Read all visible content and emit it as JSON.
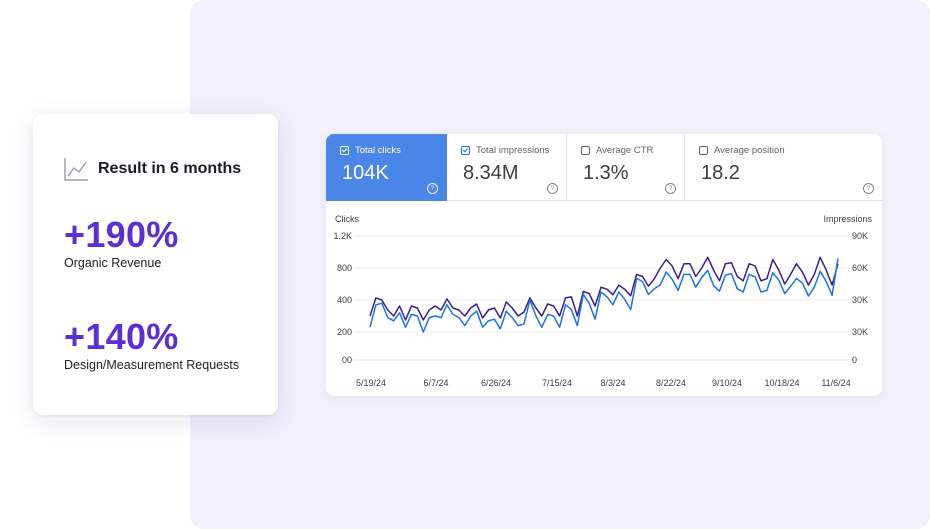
{
  "result_card": {
    "title": "Result in 6 months",
    "stats": [
      {
        "value": "+190%",
        "label": "Organic Revenue"
      },
      {
        "value": "+140%",
        "label": "Design/Measurement Requests"
      }
    ]
  },
  "metrics": [
    {
      "label": "Total clicks",
      "value": "104K",
      "checked": true,
      "active": true
    },
    {
      "label": "Total impressions",
      "value": "8.34M",
      "checked": true,
      "active": false
    },
    {
      "label": "Average CTR",
      "value": "1.3%",
      "checked": false,
      "active": false
    },
    {
      "label": "Average position",
      "value": "18.2",
      "checked": false,
      "active": false
    }
  ],
  "colors": {
    "accent": "#5b2fd6",
    "active_tab": "#4a85e8",
    "clicks_line": "#1a73e8",
    "impressions_line": "#3b1f87",
    "background_panel": "#f1f0fb"
  },
  "chart_data": {
    "type": "line",
    "xlabel_left": "Clicks",
    "ylabel_right": "Impressions",
    "x_ticks": [
      "5/19/24",
      "6/7/24",
      "6/26/24",
      "7/15/24",
      "8/3/24",
      "8/22/24",
      "9/10/24",
      "10/18/24",
      "11/6/24"
    ],
    "y_left_ticks": [
      "1.2K",
      "800",
      "400",
      "200",
      "00"
    ],
    "y_right_ticks": [
      "90K",
      "60K",
      "30K",
      "30K",
      "0"
    ],
    "grid": true,
    "series": [
      {
        "name": "Total clicks",
        "axis": "left",
        "values": [
          230,
          370,
          380,
          290,
          270,
          320,
          230,
          310,
          300,
          200,
          290,
          300,
          290,
          370,
          310,
          290,
          240,
          300,
          330,
          230,
          270,
          280,
          220,
          330,
          290,
          240,
          250,
          400,
          300,
          230,
          310,
          300,
          230,
          370,
          340,
          240,
          470,
          380,
          280,
          500,
          440,
          370,
          500,
          410,
          340,
          670,
          630,
          470,
          540,
          590,
          750,
          660,
          520,
          720,
          720,
          560,
          680,
          770,
          580,
          510,
          710,
          730,
          540,
          500,
          720,
          690,
          500,
          520,
          740,
          650,
          480,
          570,
          670,
          610,
          450,
          560,
          760,
          630,
          460,
          920
        ]
      },
      {
        "name": "Total impressions",
        "axis": "right",
        "values": [
          22,
          32,
          30,
          25,
          22,
          27,
          20,
          27,
          26,
          20,
          25,
          27,
          25,
          31,
          26,
          25,
          22,
          26,
          28,
          21,
          25,
          26,
          21,
          29,
          26,
          22,
          24,
          32,
          26,
          22,
          28,
          27,
          22,
          32,
          33,
          22,
          38,
          36,
          27,
          42,
          40,
          35,
          44,
          40,
          34,
          54,
          52,
          43,
          50,
          60,
          68,
          62,
          50,
          64,
          64,
          52,
          60,
          70,
          58,
          48,
          64,
          65,
          52,
          48,
          64,
          62,
          48,
          50,
          68,
          58,
          45,
          54,
          64,
          56,
          44,
          54,
          70,
          58,
          44,
          64
        ]
      }
    ]
  }
}
